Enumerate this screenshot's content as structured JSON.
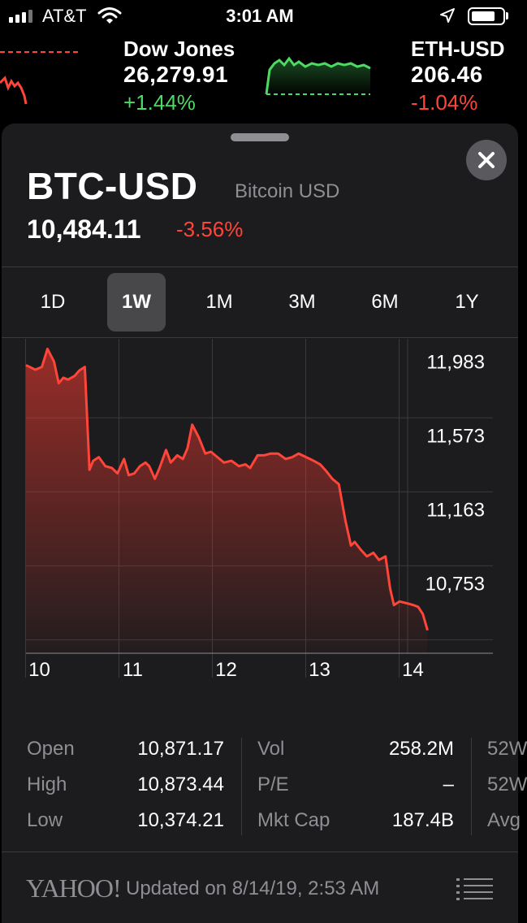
{
  "status_bar": {
    "carrier": "AT&T",
    "time": "3:01 AM",
    "icons": [
      "signal-icon",
      "wifi-icon",
      "location-icon",
      "battery-icon"
    ]
  },
  "ticker": [
    {
      "name": "Dow Jones",
      "value": "26,279.91",
      "change": "+1.44%",
      "trend": "up"
    },
    {
      "name": "ETH-USD",
      "value": "206.46",
      "change": "-1.04%",
      "trend": "down"
    }
  ],
  "detail": {
    "symbol": "BTC-USD",
    "name": "Bitcoin USD",
    "price": "10,484.11",
    "change": "-3.56%"
  },
  "ranges": {
    "items": [
      "1D",
      "1W",
      "1M",
      "3M",
      "6M",
      "1Y"
    ],
    "selected": "1W"
  },
  "chart_data": {
    "type": "area",
    "y_tick_labels": [
      "11,983",
      "11,573",
      "11,163",
      "10,753"
    ],
    "y_ticks": [
      11983,
      11573,
      11163,
      10753
    ],
    "ylim": [
      10363,
      12106
    ],
    "x_tick_labels": [
      "10",
      "11",
      "12",
      "13",
      "14"
    ],
    "xlim": [
      9.9,
      14.9
    ],
    "x": [
      9.9,
      10.0,
      10.07,
      10.13,
      10.2,
      10.25,
      10.3,
      10.35,
      10.42,
      10.47,
      10.53,
      10.58,
      10.62,
      10.68,
      10.75,
      10.82,
      10.88,
      10.95,
      11.0,
      11.06,
      11.12,
      11.18,
      11.22,
      11.28,
      11.33,
      11.4,
      11.45,
      11.52,
      11.58,
      11.63,
      11.68,
      11.75,
      11.82,
      11.88,
      11.95,
      12.02,
      12.1,
      12.18,
      12.25,
      12.3,
      12.38,
      12.45,
      12.52,
      12.6,
      12.68,
      12.75,
      12.82,
      12.9,
      12.98,
      13.05,
      13.12,
      13.18,
      13.25,
      13.32,
      13.38,
      13.42,
      13.48,
      13.55,
      13.62,
      13.68,
      13.75,
      13.8,
      13.84,
      13.9,
      13.98,
      14.05,
      14.1,
      14.15,
      14.2
    ],
    "y": [
      11960,
      11935,
      11950,
      12050,
      11980,
      11860,
      11890,
      11880,
      11900,
      11930,
      11950,
      11380,
      11430,
      11450,
      11400,
      11390,
      11360,
      11440,
      11350,
      11360,
      11400,
      11420,
      11400,
      11330,
      11390,
      11490,
      11420,
      11460,
      11440,
      11500,
      11630,
      11560,
      11470,
      11480,
      11450,
      11420,
      11430,
      11400,
      11410,
      11390,
      11460,
      11460,
      11470,
      11470,
      11440,
      11450,
      11470,
      11450,
      11430,
      11410,
      11370,
      11330,
      11300,
      11100,
      10960,
      10980,
      10940,
      10900,
      10920,
      10880,
      10900,
      10720,
      10630,
      10650,
      10640,
      10630,
      10620,
      10580,
      10490
    ]
  },
  "stats": [
    {
      "label": "Open",
      "value": "10,871.17"
    },
    {
      "label": "High",
      "value": "10,873.44"
    },
    {
      "label": "Low",
      "value": "10,374.21"
    },
    {
      "label": "Vol",
      "value": "258.2M"
    },
    {
      "label": "P/E",
      "value": "–"
    },
    {
      "label": "Mkt Cap",
      "value": "187.4B"
    },
    {
      "label": "52W"
    },
    {
      "label": "52W"
    },
    {
      "label": "Avg"
    }
  ],
  "footer": {
    "brand": "YAHOO!",
    "updated": "Updated on 8/14/19, 2:53 AM"
  },
  "colors": {
    "up": "#4cd964",
    "down": "#ff453a",
    "sheet_bg": "#1c1c1e",
    "label_gray": "#8e8e93"
  }
}
